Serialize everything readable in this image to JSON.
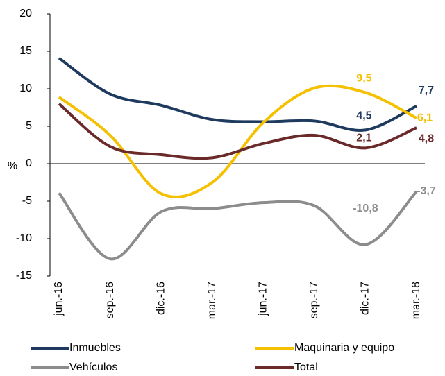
{
  "chart_data": {
    "type": "line",
    "y_label": "%",
    "categories": [
      "jun.-16",
      "sep.-16",
      "dic.-16",
      "mar.-17",
      "jun.-17",
      "sep.-17",
      "dic.-17",
      "mar.-18"
    ],
    "series": [
      {
        "name": "Inmuebles",
        "color": "#1f3a5f",
        "values": [
          14.1,
          9.3,
          7.8,
          5.9,
          5.6,
          5.7,
          4.5,
          7.7
        ],
        "value_labels": [
          null,
          null,
          null,
          null,
          null,
          null,
          "4,5",
          "7,7"
        ]
      },
      {
        "name": "Maquinaria y equipo",
        "color": "#f5c000",
        "values": [
          8.9,
          3.8,
          -4.0,
          -2.5,
          5.5,
          10.1,
          9.5,
          6.1
        ],
        "value_labels": [
          null,
          null,
          null,
          null,
          null,
          null,
          "9,5",
          "6,1"
        ]
      },
      {
        "name": "Vehículos",
        "color": "#8c8c8c",
        "values": [
          -3.9,
          -12.7,
          -6.4,
          -6.0,
          -5.2,
          -5.6,
          -10.8,
          -3.7
        ],
        "value_labels": [
          null,
          null,
          null,
          null,
          null,
          null,
          "-10,8",
          "-3,7"
        ]
      },
      {
        "name": "Total",
        "color": "#6b2a2a",
        "values": [
          8.0,
          2.3,
          1.2,
          0.8,
          2.7,
          3.8,
          2.1,
          4.8
        ],
        "value_labels": [
          null,
          null,
          null,
          null,
          null,
          null,
          "2,1",
          "4,8"
        ]
      }
    ],
    "ylim": [
      -15,
      20
    ],
    "yticks": [
      -15,
      -10,
      -5,
      0,
      5,
      10,
      15,
      20
    ]
  }
}
